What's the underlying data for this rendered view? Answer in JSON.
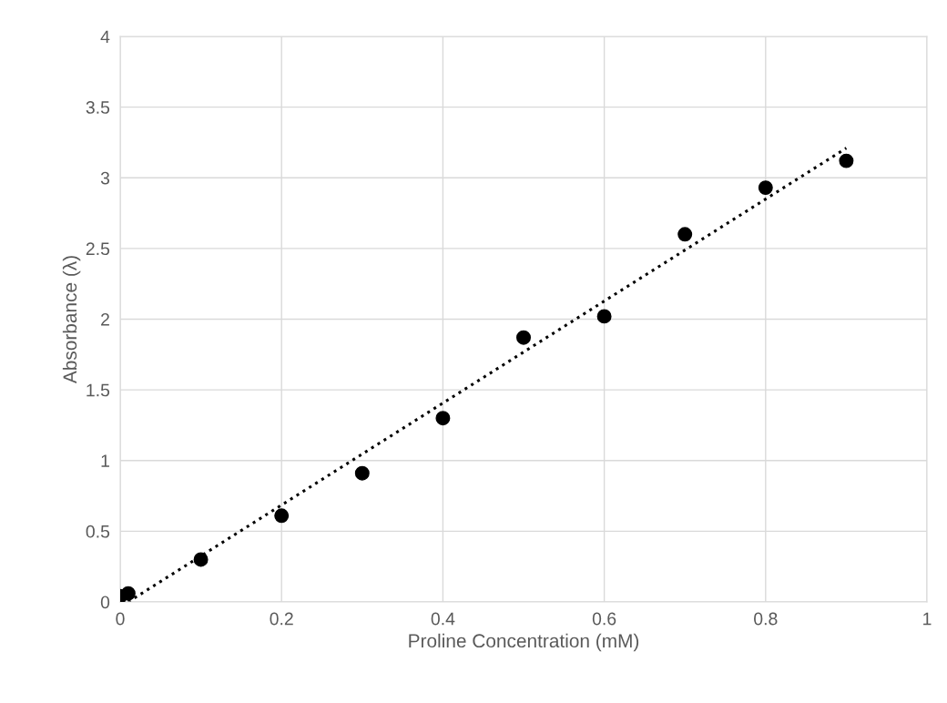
{
  "chart_data": {
    "type": "scatter",
    "xlabel": "Proline Concentration (mM)",
    "ylabel": "Absorbance (λ)",
    "xlim": [
      0,
      1
    ],
    "xticks": [
      0,
      0.2,
      0.4,
      0.6,
      0.8,
      1
    ],
    "ylim": [
      0,
      4
    ],
    "yticks": [
      0,
      0.5,
      1,
      1.5,
      2,
      2.5,
      3,
      3.5,
      4
    ],
    "grid": true,
    "marker": "circle",
    "series": [
      {
        "color": "#000000",
        "x": [
          0,
          0.01,
          0.1,
          0.2,
          0.3,
          0.4,
          0.5,
          0.6,
          0.7,
          0.8,
          0.9
        ],
        "values": [
          0.04,
          0.06,
          0.3,
          0.61,
          0.91,
          1.3,
          1.87,
          2.02,
          2.6,
          2.93,
          3.12
        ]
      },
      {
        "type": "line",
        "color": "#000000",
        "line_style": "dotted",
        "marker": "none",
        "x": [
          0.01,
          0.9
        ],
        "values": [
          0,
          3.21
        ]
      }
    ]
  }
}
